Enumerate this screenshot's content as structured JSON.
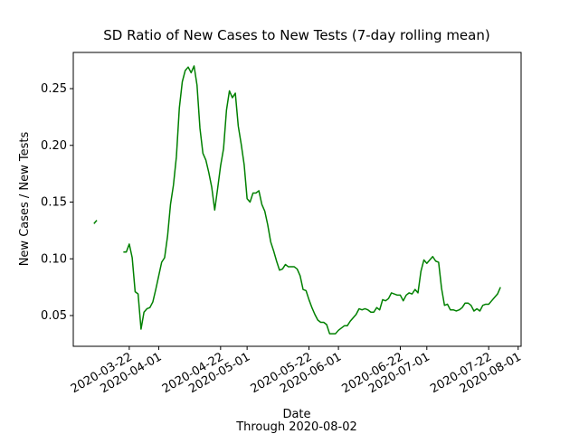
{
  "chart_data": {
    "type": "line",
    "title": "SD Ratio of New Cases to New Tests (7-day rolling mean)",
    "xlabel": "Date",
    "caption": "Through 2020-08-02",
    "ylabel": "New Cases / New Tests",
    "color": "#008000",
    "x": [
      "2020-03-10",
      "2020-03-11",
      "2020-03-12",
      "2020-03-20",
      "2020-03-21",
      "2020-03-22",
      "2020-03-23",
      "2020-03-24",
      "2020-03-25",
      "2020-03-26",
      "2020-03-27",
      "2020-03-28",
      "2020-03-29",
      "2020-03-30",
      "2020-03-31",
      "2020-04-01",
      "2020-04-02",
      "2020-04-03",
      "2020-04-04",
      "2020-04-05",
      "2020-04-06",
      "2020-04-07",
      "2020-04-08",
      "2020-04-09",
      "2020-04-10",
      "2020-04-11",
      "2020-04-12",
      "2020-04-13",
      "2020-04-14",
      "2020-04-15",
      "2020-04-16",
      "2020-04-17",
      "2020-04-18",
      "2020-04-19",
      "2020-04-20",
      "2020-04-21",
      "2020-04-22",
      "2020-04-23",
      "2020-04-24",
      "2020-04-25",
      "2020-04-26",
      "2020-04-27",
      "2020-04-28",
      "2020-04-29",
      "2020-04-30",
      "2020-05-01",
      "2020-05-02",
      "2020-05-03",
      "2020-05-04",
      "2020-05-05",
      "2020-05-06",
      "2020-05-07",
      "2020-05-08",
      "2020-05-09",
      "2020-05-10",
      "2020-05-11",
      "2020-05-12",
      "2020-05-13",
      "2020-05-14",
      "2020-05-15",
      "2020-05-16",
      "2020-05-17",
      "2020-05-18",
      "2020-05-19",
      "2020-05-20",
      "2020-05-21",
      "2020-05-22",
      "2020-05-23",
      "2020-05-24",
      "2020-05-25",
      "2020-05-26",
      "2020-05-27",
      "2020-05-28",
      "2020-05-29",
      "2020-05-30",
      "2020-05-31",
      "2020-06-01",
      "2020-06-02",
      "2020-06-03",
      "2020-06-04",
      "2020-06-05",
      "2020-06-06",
      "2020-06-07",
      "2020-06-08",
      "2020-06-09",
      "2020-06-10",
      "2020-06-11",
      "2020-06-12",
      "2020-06-13",
      "2020-06-14",
      "2020-06-15",
      "2020-06-16",
      "2020-06-17",
      "2020-06-18",
      "2020-06-19",
      "2020-06-20",
      "2020-06-21",
      "2020-06-22",
      "2020-06-23",
      "2020-06-24",
      "2020-06-25",
      "2020-06-26",
      "2020-06-27",
      "2020-06-28",
      "2020-06-29",
      "2020-06-30",
      "2020-07-01",
      "2020-07-02",
      "2020-07-03",
      "2020-07-04",
      "2020-07-05",
      "2020-07-06",
      "2020-07-07",
      "2020-07-08",
      "2020-07-09",
      "2020-07-10",
      "2020-07-11",
      "2020-07-12",
      "2020-07-13",
      "2020-07-14",
      "2020-07-15",
      "2020-07-16",
      "2020-07-17",
      "2020-07-18",
      "2020-07-19",
      "2020-07-20",
      "2020-07-21",
      "2020-07-22",
      "2020-07-23",
      "2020-07-24",
      "2020-07-25",
      "2020-07-26"
    ],
    "values": [
      0.131,
      0.134,
      null,
      0.106,
      0.106,
      0.113,
      0.101,
      0.071,
      0.069,
      0.038,
      0.053,
      0.056,
      0.057,
      0.062,
      0.073,
      0.085,
      0.097,
      0.101,
      0.12,
      0.148,
      0.165,
      0.19,
      0.233,
      0.256,
      0.266,
      0.269,
      0.264,
      0.27,
      0.253,
      0.215,
      0.193,
      0.187,
      0.176,
      0.163,
      0.143,
      0.162,
      0.182,
      0.197,
      0.231,
      0.248,
      0.242,
      0.246,
      0.217,
      0.201,
      0.183,
      0.153,
      0.15,
      0.158,
      0.158,
      0.16,
      0.148,
      0.142,
      0.13,
      0.115,
      0.107,
      0.098,
      0.09,
      0.091,
      0.095,
      0.093,
      0.093,
      0.093,
      0.091,
      0.085,
      0.073,
      0.072,
      0.064,
      0.057,
      0.051,
      0.046,
      0.044,
      0.044,
      0.042,
      0.034,
      0.034,
      0.034,
      0.037,
      0.039,
      0.041,
      0.041,
      0.045,
      0.048,
      0.051,
      0.056,
      0.055,
      0.056,
      0.055,
      0.053,
      0.053,
      0.057,
      0.055,
      0.064,
      0.063,
      0.065,
      0.07,
      0.069,
      0.068,
      0.068,
      0.063,
      0.068,
      0.07,
      0.069,
      0.073,
      0.07,
      0.089,
      0.099,
      0.096,
      0.099,
      0.102,
      0.098,
      0.097,
      0.074,
      0.059,
      0.06,
      0.055,
      0.055,
      0.054,
      0.055,
      0.057,
      0.061,
      0.061,
      0.059,
      0.054,
      0.056,
      0.054,
      0.059,
      0.06,
      0.06,
      0.063,
      0.066,
      0.069,
      0.075
    ],
    "xlim": [
      "2020-03-03",
      "2020-08-02"
    ],
    "xticks": [
      "2020-03-22",
      "2020-04-01",
      "2020-04-22",
      "2020-05-01",
      "2020-05-22",
      "2020-06-01",
      "2020-06-22",
      "2020-07-01",
      "2020-07-22",
      "2020-08-01"
    ],
    "ylim": [
      0.0229,
      0.2819
    ],
    "yticks": [
      0.05,
      {
        "value": 0.1,
        "label": "0.10"
      },
      0.15,
      {
        "value": 0.2,
        "label": "0.20"
      },
      0.25
    ]
  }
}
